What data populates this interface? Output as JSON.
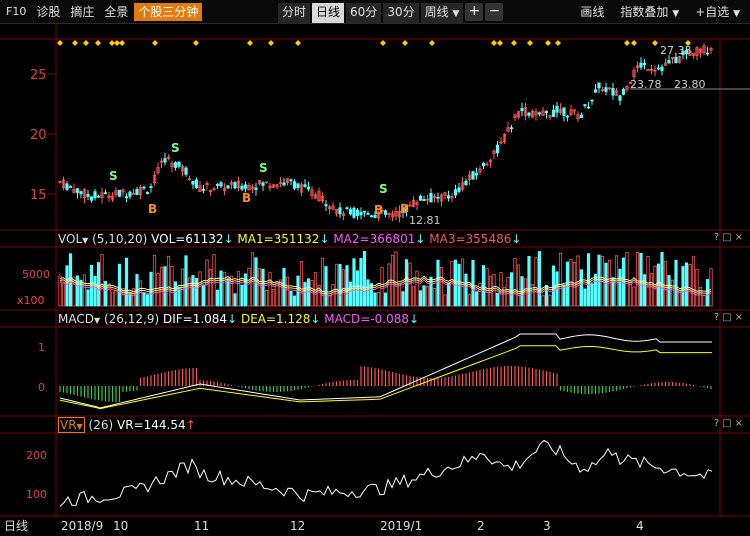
{
  "toolbar": {
    "f10": "F10",
    "diagnose": "诊股",
    "zhai": "摘庄",
    "panorama": "全景",
    "stock_name": "个股三分钟",
    "periods": [
      "分时",
      "日线",
      "60分",
      "30分"
    ],
    "week": "周线",
    "plus": "+",
    "minus": "−",
    "draw": "画线",
    "overlay": "指数叠加",
    "custom": "+自选"
  },
  "main": {
    "y_ticks": [
      "25",
      "20",
      "15"
    ],
    "high_label": "27.33",
    "low_label": "12.81",
    "mark1": "23.78",
    "mark2": "23.80",
    "x_labels": [
      "2018/9",
      "10",
      "11",
      "12",
      "2019/1",
      "2",
      "3",
      "4"
    ],
    "bottom_period": "日线"
  },
  "vol": {
    "name": "VOL",
    "params": "(5,10,20)",
    "value": "VOL=61132",
    "ma1": "MA1=351132",
    "ma2": "MA2=366801",
    "ma3": "MA3=355486",
    "unit": "x100",
    "tick": "5000"
  },
  "macd": {
    "name": "MACD",
    "params": "(26,12,9)",
    "dif": "DIF=1.084",
    "dea": "DEA=1.128",
    "macd": "MACD=-0.088",
    "ticks": [
      "1",
      "0"
    ]
  },
  "vr": {
    "name": "VR",
    "params": "(26)",
    "value": "VR=144.54",
    "ticks": [
      "200",
      "100"
    ]
  },
  "signals": {
    "buy": "B",
    "sell": "S"
  },
  "colors": {
    "up": "#ff5555",
    "down": "#54ffff",
    "ma1": "#ffffff",
    "ma2": "#ffff00",
    "ma3": "#ff55ff",
    "accent": "#e37b0e",
    "grid": "#7a0000"
  }
}
